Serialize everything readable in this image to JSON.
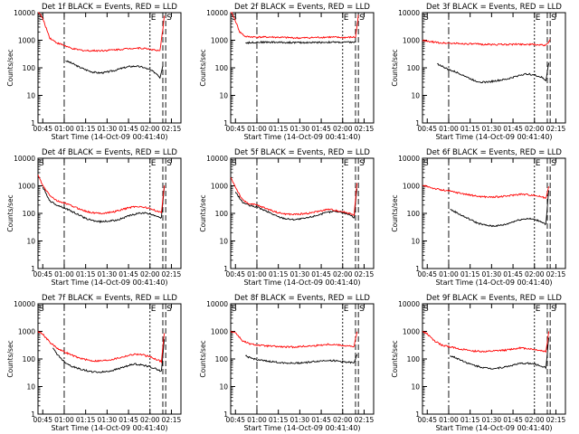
{
  "chart_data": [
    {
      "title": "Det 1f BLACK = Events, RED = LLD",
      "type": "line",
      "xlabel": "Start Time (14-Oct-09 00:41:40)",
      "ylabel": "Counts/sec",
      "xticks": [
        "00:45",
        "01:00",
        "01:15",
        "01:30",
        "01:45",
        "02:00",
        "02:15"
      ],
      "yticks": [
        "1",
        "10",
        "100",
        "1000",
        "10000"
      ],
      "yscale": "log",
      "ylim": [
        1,
        10000
      ],
      "event_markers": [
        "S",
        "E",
        "S"
      ],
      "series": [
        {
          "color": "#000000",
          "x": [
            "01:00",
            "01:01",
            "01:05",
            "01:10",
            "01:15",
            "01:20",
            "01:25",
            "01:30",
            "01:35",
            "01:40",
            "01:45",
            "01:50",
            "01:55",
            "02:00",
            "02:05",
            "02:07",
            "02:09"
          ],
          "values": [
            null,
            180,
            150,
            110,
            85,
            70,
            65,
            70,
            80,
            95,
            110,
            115,
            105,
            85,
            60,
            45,
            120
          ]
        },
        {
          "color": "#ff0000",
          "x": [
            "00:41:40",
            "00:45",
            "00:50",
            "00:55",
            "01:00",
            "01:05",
            "01:10",
            "01:15",
            "01:20",
            "01:25",
            "01:30",
            "01:35",
            "01:40",
            "01:45",
            "01:50",
            "01:55",
            "02:00",
            "02:05",
            "02:07",
            "02:09",
            "02:10"
          ],
          "values": [
            12000,
            6000,
            1200,
            800,
            650,
            500,
            450,
            420,
            420,
            420,
            430,
            450,
            470,
            500,
            520,
            510,
            480,
            420,
            400,
            2500,
            8000
          ]
        }
      ]
    },
    {
      "title": "Det 2f BLACK = Events, RED = LLD",
      "type": "line",
      "xlabel": "Start Time (14-Oct-09 00:41:40)",
      "ylabel": "Counts/sec",
      "xticks": [
        "00:45",
        "01:00",
        "01:15",
        "01:30",
        "01:45",
        "02:00",
        "02:15"
      ],
      "yticks": [
        "1",
        "10",
        "100",
        "1000",
        "10000"
      ],
      "yscale": "log",
      "ylim": [
        1,
        10000
      ],
      "event_markers": [
        "S",
        "E",
        "S"
      ],
      "series": [
        {
          "color": "#000000",
          "x": [
            "00:52",
            "01:00",
            "01:10",
            "01:20",
            "01:30",
            "01:40",
            "01:50",
            "02:00",
            "02:09"
          ],
          "values": [
            800,
            850,
            850,
            830,
            820,
            830,
            850,
            840,
            850
          ]
        },
        {
          "color": "#ff0000",
          "x": [
            "00:41:40",
            "00:45",
            "00:48",
            "00:52",
            "01:00",
            "01:10",
            "01:20",
            "01:30",
            "01:40",
            "01:50",
            "02:00",
            "02:09",
            "02:11"
          ],
          "values": [
            12000,
            5000,
            2000,
            1350,
            1300,
            1300,
            1250,
            1200,
            1250,
            1300,
            1250,
            1300,
            8000
          ]
        }
      ]
    },
    {
      "title": "Det 3f BLACK = Events, RED = LLD",
      "type": "line",
      "xlabel": "Start Time (14-Oct-09 00:41:40)",
      "ylabel": "Counts/sec",
      "xticks": [
        "00:45",
        "01:00",
        "01:15",
        "01:30",
        "01:45",
        "02:00",
        "02:15"
      ],
      "yticks": [
        "1",
        "10",
        "100",
        "1000",
        "10000"
      ],
      "yscale": "log",
      "ylim": [
        1,
        10000
      ],
      "event_markers": [
        "S",
        "E",
        "S"
      ],
      "series": [
        {
          "color": "#000000",
          "x": [
            "00:52",
            "00:56",
            "01:00",
            "01:05",
            "01:10",
            "01:15",
            "01:20",
            "01:25",
            "01:30",
            "01:35",
            "01:40",
            "01:45",
            "01:50",
            "01:55",
            "02:00",
            "02:05",
            "02:08",
            "02:10"
          ],
          "values": [
            140,
            110,
            85,
            70,
            55,
            40,
            32,
            30,
            32,
            35,
            38,
            45,
            55,
            60,
            55,
            45,
            35,
            150
          ]
        },
        {
          "color": "#ff0000",
          "x": [
            "00:41:40",
            "00:45",
            "00:50",
            "00:55",
            "01:00",
            "01:10",
            "01:20",
            "01:30",
            "01:40",
            "01:50",
            "02:00",
            "02:08",
            "02:11"
          ],
          "values": [
            1000,
            900,
            850,
            800,
            780,
            750,
            720,
            700,
            700,
            720,
            700,
            650,
            1000
          ]
        }
      ]
    },
    {
      "title": "Det 4f BLACK = Events, RED = LLD",
      "type": "line",
      "xlabel": "Start Time (14-Oct-09 00:41:40)",
      "ylabel": "Counts/sec",
      "xticks": [
        "00:45",
        "01:00",
        "01:15",
        "01:30",
        "01:45",
        "02:00",
        "02:15"
      ],
      "yticks": [
        "1",
        "10",
        "100",
        "1000",
        "10000"
      ],
      "yscale": "log",
      "ylim": [
        1,
        10000
      ],
      "event_markers": [
        "S",
        "E",
        "S"
      ],
      "series": [
        {
          "color": "#000000",
          "x": [
            "00:45",
            "00:50",
            "00:55",
            "01:00",
            "01:05",
            "01:10",
            "01:15",
            "01:20",
            "01:25",
            "01:30",
            "01:35",
            "01:40",
            "01:45",
            "01:50",
            "01:55",
            "02:00",
            "02:05",
            "02:08",
            "02:10"
          ],
          "values": [
            900,
            280,
            200,
            160,
            120,
            90,
            65,
            55,
            50,
            52,
            55,
            65,
            80,
            95,
            105,
            95,
            80,
            70,
            900
          ]
        },
        {
          "color": "#ff0000",
          "x": [
            "00:41:40",
            "00:45",
            "00:50",
            "00:55",
            "01:00",
            "01:05",
            "01:10",
            "01:15",
            "01:20",
            "01:25",
            "01:30",
            "01:35",
            "01:40",
            "01:45",
            "01:50",
            "01:55",
            "02:00",
            "02:05",
            "02:08",
            "02:10"
          ],
          "values": [
            2500,
            1000,
            450,
            280,
            240,
            190,
            150,
            120,
            105,
            100,
            105,
            115,
            135,
            160,
            180,
            170,
            150,
            120,
            105,
            1000
          ]
        }
      ]
    },
    {
      "title": "Det 5f BLACK = Events, RED = LLD",
      "type": "line",
      "xlabel": "Start Time (14-Oct-09 00:41:40)",
      "ylabel": "Counts/sec",
      "xticks": [
        "00:45",
        "01:00",
        "01:15",
        "01:30",
        "01:45",
        "02:00",
        "02:15"
      ],
      "yticks": [
        "1",
        "10",
        "100",
        "1000",
        "10000"
      ],
      "yscale": "log",
      "ylim": [
        1,
        10000
      ],
      "event_markers": [
        "S",
        "E",
        "S"
      ],
      "series": [
        {
          "color": "#000000",
          "x": [
            "00:45",
            "00:50",
            "00:55",
            "01:00",
            "01:05",
            "01:10",
            "01:15",
            "01:20",
            "01:25",
            "01:30",
            "01:35",
            "01:40",
            "01:45",
            "01:50",
            "01:55",
            "02:00",
            "02:05",
            "02:08",
            "02:10"
          ],
          "values": [
            600,
            250,
            190,
            170,
            130,
            100,
            75,
            65,
            60,
            62,
            68,
            80,
            95,
            110,
            120,
            110,
            90,
            70,
            800
          ]
        },
        {
          "color": "#ff0000",
          "x": [
            "00:41:40",
            "00:45",
            "00:50",
            "00:55",
            "01:00",
            "01:05",
            "01:10",
            "01:15",
            "01:20",
            "01:25",
            "01:30",
            "01:35",
            "01:40",
            "01:45",
            "01:50",
            "01:55",
            "02:00",
            "02:05",
            "02:08",
            "02:10"
          ],
          "values": [
            2000,
            900,
            300,
            220,
            200,
            160,
            130,
            105,
            95,
            92,
            95,
            100,
            110,
            125,
            140,
            130,
            115,
            100,
            90,
            1200
          ]
        }
      ]
    },
    {
      "title": "Det 6f BLACK = Events, RED = LLD",
      "type": "line",
      "xlabel": "Start Time (14-Oct-09 00:41:40)",
      "ylabel": "Counts/sec",
      "xticks": [
        "00:45",
        "01:00",
        "01:15",
        "01:30",
        "01:45",
        "02:00",
        "02:15"
      ],
      "yticks": [
        "1",
        "10",
        "100",
        "1000",
        "10000"
      ],
      "yscale": "log",
      "ylim": [
        1,
        10000
      ],
      "event_markers": [
        "S",
        "E",
        "S"
      ],
      "series": [
        {
          "color": "#000000",
          "x": [
            "01:01",
            "01:05",
            "01:10",
            "01:15",
            "01:20",
            "01:25",
            "01:30",
            "01:35",
            "01:40",
            "01:45",
            "01:50",
            "01:55",
            "02:00",
            "02:05",
            "02:08",
            "02:10"
          ],
          "values": [
            140,
            110,
            80,
            60,
            45,
            38,
            35,
            36,
            40,
            50,
            60,
            65,
            60,
            50,
            40,
            700
          ]
        },
        {
          "color": "#ff0000",
          "x": [
            "00:41:40",
            "00:45",
            "00:50",
            "00:55",
            "01:00",
            "01:05",
            "01:10",
            "01:15",
            "01:20",
            "01:25",
            "01:30",
            "01:35",
            "01:40",
            "01:45",
            "01:50",
            "01:55",
            "02:00",
            "02:05",
            "02:08",
            "02:10"
          ],
          "values": [
            1000,
            950,
            800,
            700,
            650,
            580,
            520,
            460,
            420,
            400,
            390,
            400,
            420,
            460,
            500,
            480,
            450,
            400,
            350,
            1000
          ]
        }
      ]
    },
    {
      "title": "Det 7f BLACK = Events, RED = LLD",
      "type": "line",
      "xlabel": "Start Time (14-Oct-09 00:41:40)",
      "ylabel": "Counts/sec",
      "xticks": [
        "00:45",
        "01:00",
        "01:15",
        "01:30",
        "01:45",
        "02:00",
        "02:15"
      ],
      "yticks": [
        "1",
        "10",
        "100",
        "1000",
        "10000"
      ],
      "yscale": "log",
      "ylim": [
        1,
        10000
      ],
      "event_markers": [
        "S",
        "E",
        "S"
      ],
      "series": [
        {
          "color": "#000000",
          "x": [
            "00:52",
            "00:55",
            "01:00",
            "01:05",
            "01:10",
            "01:15",
            "01:20",
            "01:25",
            "01:30",
            "01:35",
            "01:40",
            "01:45",
            "01:50",
            "01:55",
            "02:00",
            "02:05",
            "02:08",
            "02:10"
          ],
          "values": [
            250,
            150,
            80,
            55,
            45,
            38,
            34,
            33,
            35,
            40,
            48,
            58,
            65,
            60,
            52,
            42,
            35,
            500
          ]
        },
        {
          "color": "#ff0000",
          "x": [
            "00:41:40",
            "00:45",
            "00:50",
            "00:55",
            "01:00",
            "01:05",
            "01:10",
            "01:15",
            "01:20",
            "01:25",
            "01:30",
            "01:35",
            "01:40",
            "01:45",
            "01:50",
            "01:55",
            "02:00",
            "02:05",
            "02:08",
            "02:10"
          ],
          "values": [
            1000,
            800,
            400,
            250,
            180,
            140,
            110,
            95,
            85,
            85,
            90,
            100,
            115,
            135,
            150,
            140,
            120,
            95,
            80,
            900
          ]
        }
      ]
    },
    {
      "title": "Det 8f BLACK = Events, RED = LLD",
      "type": "line",
      "xlabel": "Start Time (14-Oct-09 00:41:40)",
      "ylabel": "Counts/sec",
      "xticks": [
        "00:45",
        "01:00",
        "01:15",
        "01:30",
        "01:45",
        "02:00",
        "02:15"
      ],
      "yticks": [
        "1",
        "10",
        "100",
        "1000",
        "10000"
      ],
      "yscale": "log",
      "ylim": [
        1,
        10000
      ],
      "event_markers": [
        "S",
        "E",
        "S"
      ],
      "series": [
        {
          "color": "#000000",
          "x": [
            "00:52",
            "00:55",
            "01:00",
            "01:05",
            "01:10",
            "01:15",
            "01:20",
            "01:25",
            "01:30",
            "01:35",
            "01:40",
            "01:45",
            "01:50",
            "01:55",
            "02:00",
            "02:05",
            "02:08",
            "02:10"
          ],
          "values": [
            130,
            110,
            95,
            85,
            80,
            75,
            72,
            70,
            72,
            75,
            80,
            85,
            90,
            85,
            80,
            75,
            70,
            150
          ]
        },
        {
          "color": "#ff0000",
          "x": [
            "00:41:40",
            "00:45",
            "00:50",
            "00:55",
            "01:00",
            "01:05",
            "01:10",
            "01:15",
            "01:20",
            "01:25",
            "01:30",
            "01:35",
            "01:40",
            "01:45",
            "01:50",
            "01:55",
            "02:00",
            "02:05",
            "02:08",
            "02:10"
          ],
          "values": [
            1000,
            900,
            450,
            350,
            320,
            300,
            290,
            280,
            270,
            270,
            280,
            290,
            300,
            320,
            340,
            330,
            310,
            290,
            280,
            1000
          ]
        }
      ]
    },
    {
      "title": "Det 9f BLACK = Events, RED = LLD",
      "type": "line",
      "xlabel": "Start Time (14-Oct-09 00:41:40)",
      "ylabel": "Counts/sec",
      "xticks": [
        "00:45",
        "01:00",
        "01:15",
        "01:30",
        "01:45",
        "02:00",
        "02:15"
      ],
      "yticks": [
        "1",
        "10",
        "100",
        "1000",
        "10000"
      ],
      "yscale": "log",
      "ylim": [
        1,
        10000
      ],
      "event_markers": [
        "S",
        "E",
        "S"
      ],
      "series": [
        {
          "color": "#000000",
          "x": [
            "01:01",
            "01:05",
            "01:10",
            "01:15",
            "01:20",
            "01:25",
            "01:30",
            "01:35",
            "01:40",
            "01:45",
            "01:50",
            "01:55",
            "02:00",
            "02:05",
            "02:08",
            "02:10"
          ],
          "values": [
            130,
            110,
            85,
            65,
            55,
            48,
            45,
            47,
            52,
            60,
            68,
            70,
            65,
            55,
            48,
            600
          ]
        },
        {
          "color": "#ff0000",
          "x": [
            "00:41:40",
            "00:45",
            "00:50",
            "00:55",
            "01:00",
            "01:05",
            "01:10",
            "01:15",
            "01:20",
            "01:25",
            "01:30",
            "01:35",
            "01:40",
            "01:45",
            "01:50",
            "01:55",
            "02:00",
            "02:05",
            "02:08",
            "02:10"
          ],
          "values": [
            1000,
            800,
            450,
            320,
            280,
            250,
            220,
            200,
            190,
            185,
            190,
            200,
            210,
            230,
            250,
            240,
            220,
            200,
            185,
            1000
          ]
        }
      ]
    }
  ]
}
